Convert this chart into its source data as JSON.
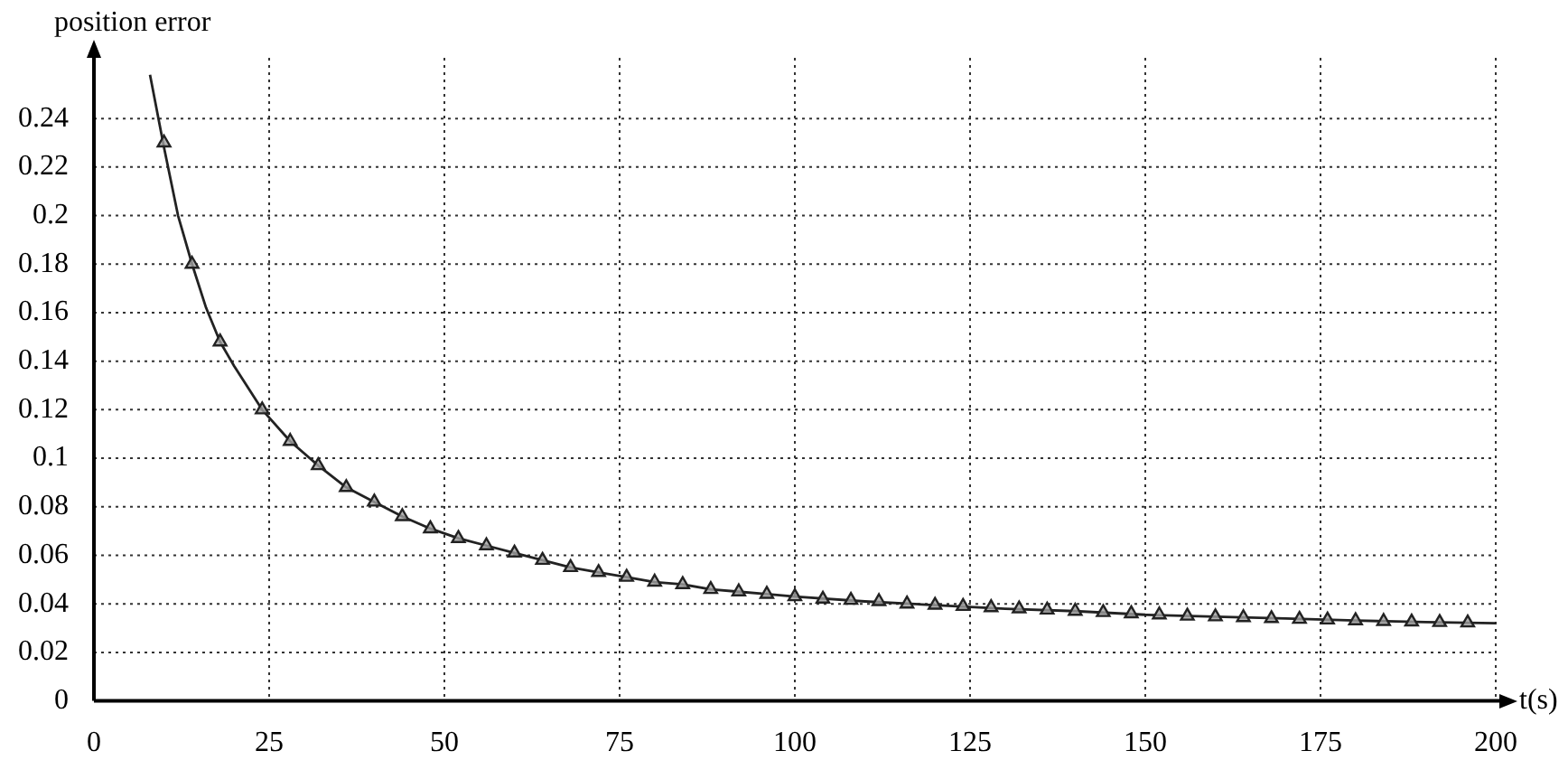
{
  "chart_data": {
    "type": "line",
    "ylabel": "position error",
    "xlabel": "t(s)",
    "xlim": [
      0,
      200
    ],
    "ylim": [
      0,
      0.265
    ],
    "xticks": [
      0,
      25,
      50,
      75,
      100,
      125,
      150,
      175,
      200
    ],
    "yticks": [
      0,
      0.02,
      0.04,
      0.06,
      0.08,
      0.1,
      0.12,
      0.14,
      0.16,
      0.18,
      0.2,
      0.22,
      0.24
    ],
    "grid": true,
    "legend": false,
    "series": [
      {
        "type": "line",
        "color": "#222222",
        "marker": "none",
        "line_style": "solid",
        "x": [
          8,
          10,
          12,
          14,
          16,
          18,
          20,
          24,
          28,
          32,
          36,
          40,
          44,
          48,
          52,
          56,
          60,
          64,
          68,
          72,
          76,
          80,
          84,
          88,
          92,
          96,
          100,
          110,
          120,
          130,
          140,
          150,
          160,
          170,
          180,
          190,
          200
        ],
        "values": [
          0.258,
          0.228,
          0.2,
          0.18,
          0.162,
          0.148,
          0.138,
          0.12,
          0.107,
          0.097,
          0.088,
          0.082,
          0.076,
          0.071,
          0.067,
          0.064,
          0.061,
          0.058,
          0.055,
          0.053,
          0.051,
          0.049,
          0.048,
          0.046,
          0.045,
          0.044,
          0.043,
          0.041,
          0.0395,
          0.038,
          0.037,
          0.0355,
          0.0347,
          0.034,
          0.0331,
          0.0325,
          0.032
        ]
      },
      {
        "type": "scatter",
        "color": "#222222",
        "marker": "triangle",
        "x": [
          10,
          14,
          18,
          24,
          28,
          32,
          36,
          40,
          44,
          48,
          52,
          56,
          60,
          64,
          68,
          72,
          76,
          80,
          84,
          88,
          92,
          96,
          100,
          104,
          108,
          112,
          116,
          120,
          124,
          128,
          132,
          136,
          140,
          144,
          148,
          152,
          156,
          160,
          164,
          168,
          172,
          176,
          180,
          184,
          188,
          192,
          196
        ],
        "values": [
          0.23,
          0.18,
          0.148,
          0.12,
          0.107,
          0.097,
          0.088,
          0.082,
          0.076,
          0.071,
          0.067,
          0.064,
          0.061,
          0.058,
          0.055,
          0.053,
          0.051,
          0.049,
          0.048,
          0.046,
          0.045,
          0.044,
          0.043,
          0.042,
          0.0415,
          0.041,
          0.04,
          0.0395,
          0.039,
          0.0385,
          0.038,
          0.0375,
          0.037,
          0.0365,
          0.036,
          0.0355,
          0.035,
          0.0347,
          0.0344,
          0.034,
          0.0337,
          0.0334,
          0.0331,
          0.0328,
          0.0326,
          0.0324,
          0.0322
        ]
      }
    ]
  }
}
